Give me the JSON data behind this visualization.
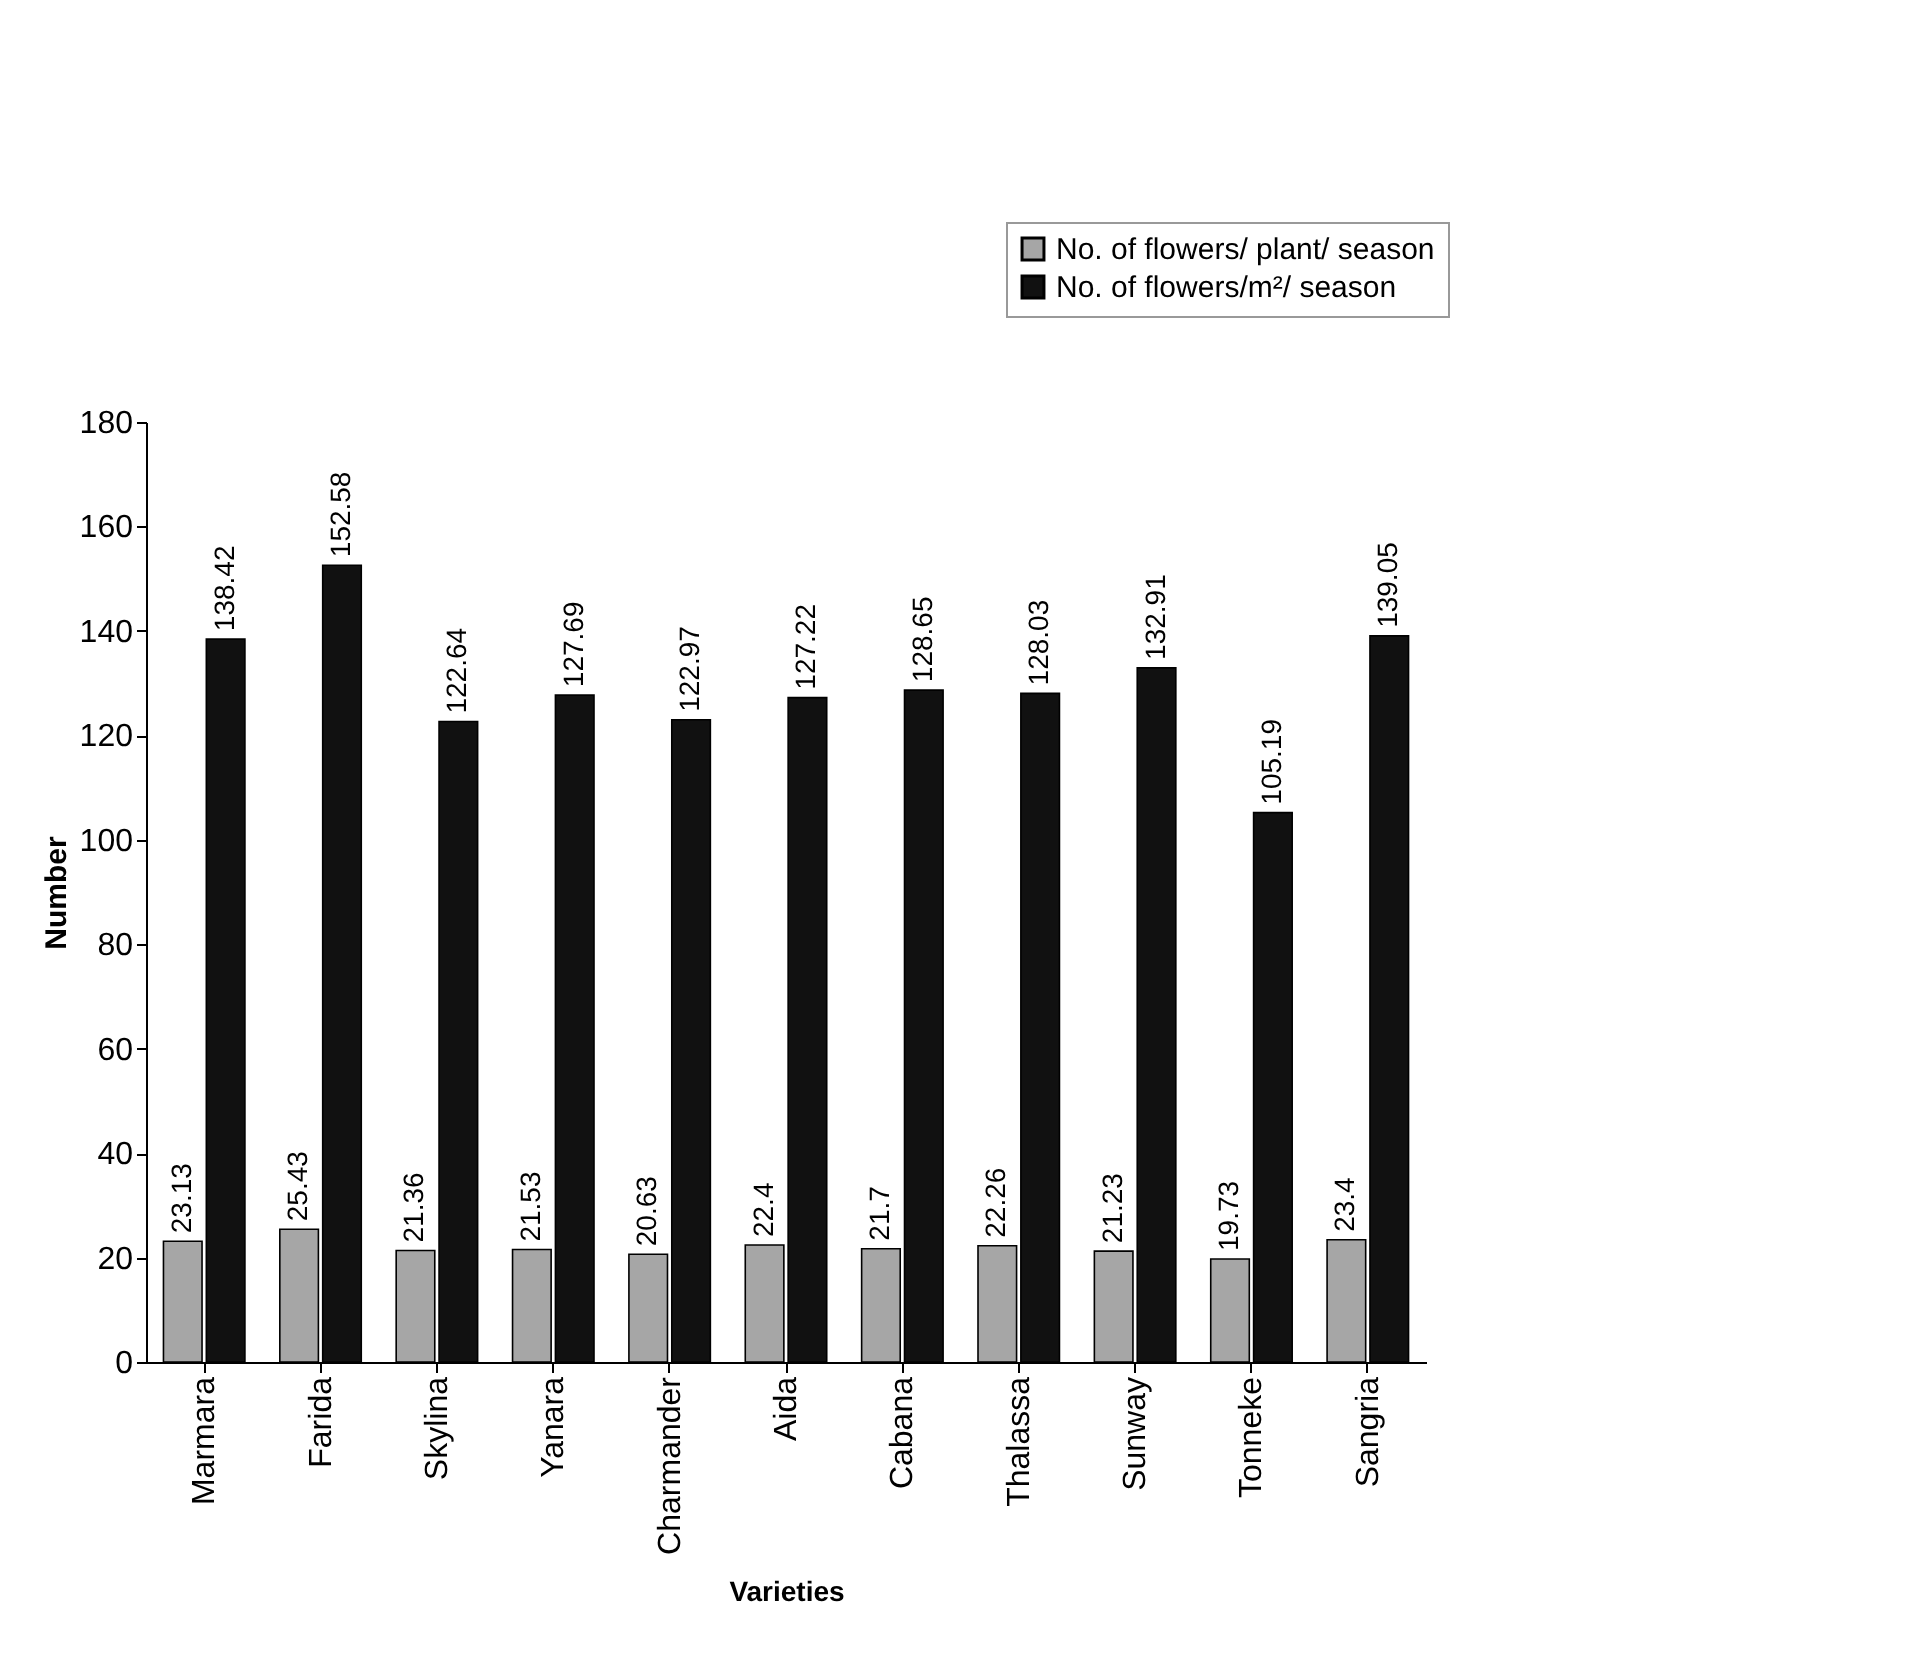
{
  "chart_data": {
    "type": "bar",
    "xlabel": "Varieties",
    "ylabel": "Number",
    "categories": [
      "Marmara",
      "Farida",
      "Skylina",
      "Yanara",
      "Charmander",
      "Aida",
      "Cabana",
      "Thalassa",
      "Sunway",
      "Tonneke",
      "Sangria"
    ],
    "series": [
      {
        "name": "No. of flowers/ plant/ season",
        "color": "#a6a6a6",
        "values": [
          23.13,
          25.43,
          21.36,
          21.53,
          20.63,
          22.4,
          21.7,
          22.26,
          21.23,
          19.73,
          23.4
        ]
      },
      {
        "name": "No. of flowers/m²/ season",
        "color": "#111111",
        "values": [
          138.42,
          152.58,
          122.64,
          127.69,
          122.97,
          127.22,
          128.65,
          128.03,
          132.91,
          105.19,
          139.05
        ]
      }
    ],
    "ylim": [
      0,
      180
    ],
    "yticks": [
      0,
      20,
      40,
      60,
      80,
      100,
      120,
      140,
      160,
      180
    ],
    "data_labels": true,
    "legend": "top right",
    "grid": false
  }
}
